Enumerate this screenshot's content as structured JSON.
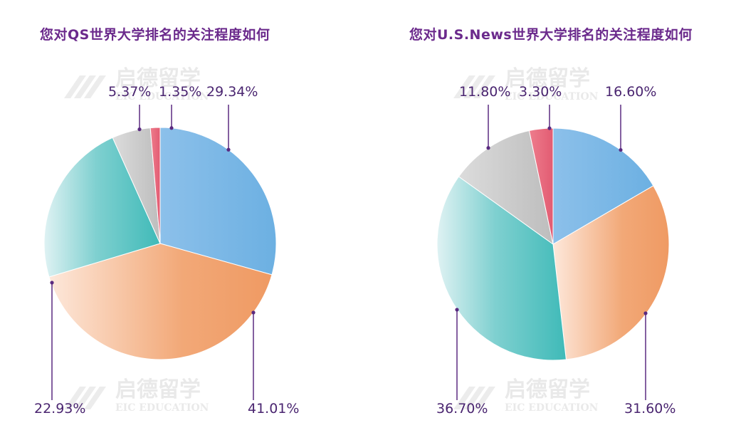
{
  "watermark": {
    "brand": "启德留学",
    "sub": "EIC EDUCATION"
  },
  "chart_data": [
    {
      "type": "pie",
      "title": "您对QS世界大学排名的关注程度如何",
      "slices": [
        {
          "value": 29.34,
          "label": "29.34%",
          "color": "#6cb0e2"
        },
        {
          "value": 41.01,
          "label": "41.01%",
          "color": "#f2a877"
        },
        {
          "value": 22.93,
          "label": "22.93%",
          "color": "#4bbfbd"
        },
        {
          "value": 5.37,
          "label": "5.37%",
          "color": "#c6c6c6"
        },
        {
          "value": 1.35,
          "label": "1.35%",
          "color": "#e8657a"
        }
      ]
    },
    {
      "type": "pie",
      "title": "您对U.S.News世界大学排名的关注程度如何",
      "slices": [
        {
          "value": 16.6,
          "label": "16.60%",
          "color": "#6cb0e2"
        },
        {
          "value": 31.6,
          "label": "31.60%",
          "color": "#f2a877"
        },
        {
          "value": 36.7,
          "label": "36.70%",
          "color": "#4bbfbd"
        },
        {
          "value": 11.8,
          "label": "11.80%",
          "color": "#c6c6c6"
        },
        {
          "value": 3.3,
          "label": "3.30%",
          "color": "#e8657a"
        }
      ]
    }
  ]
}
